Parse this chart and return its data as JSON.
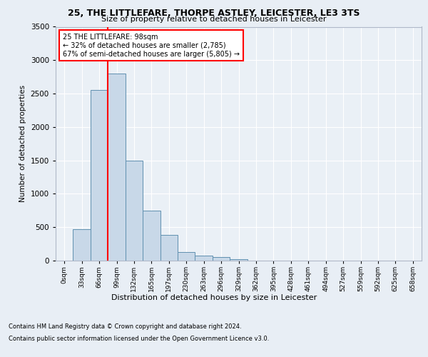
{
  "title1": "25, THE LITTLEFARE, THORPE ASTLEY, LEICESTER, LE3 3TS",
  "title2": "Size of property relative to detached houses in Leicester",
  "xlabel": "Distribution of detached houses by size in Leicester",
  "ylabel": "Number of detached properties",
  "bar_labels": [
    "0sqm",
    "33sqm",
    "66sqm",
    "99sqm",
    "132sqm",
    "165sqm",
    "197sqm",
    "230sqm",
    "263sqm",
    "296sqm",
    "329sqm",
    "362sqm",
    "395sqm",
    "428sqm",
    "461sqm",
    "494sqm",
    "527sqm",
    "559sqm",
    "592sqm",
    "625sqm",
    "658sqm"
  ],
  "bar_values": [
    5,
    470,
    2550,
    2800,
    1500,
    750,
    380,
    130,
    75,
    50,
    20,
    5,
    0,
    0,
    0,
    0,
    0,
    0,
    0,
    0,
    0
  ],
  "bar_color": "#c8d8e8",
  "bar_edge_color": "#6090b0",
  "ylim": [
    0,
    3500
  ],
  "yticks": [
    0,
    500,
    1000,
    1500,
    2000,
    2500,
    3000,
    3500
  ],
  "property_label": "25 THE LITTLEFARE: 98sqm",
  "annotation_line1": "← 32% of detached houses are smaller (2,785)",
  "annotation_line2": "67% of semi-detached houses are larger (5,805) →",
  "red_line_bin": 3,
  "footer1": "Contains HM Land Registry data © Crown copyright and database right 2024.",
  "footer2": "Contains public sector information licensed under the Open Government Licence v3.0.",
  "background_color": "#e8eef5",
  "plot_bg_color": "#eaf0f6"
}
